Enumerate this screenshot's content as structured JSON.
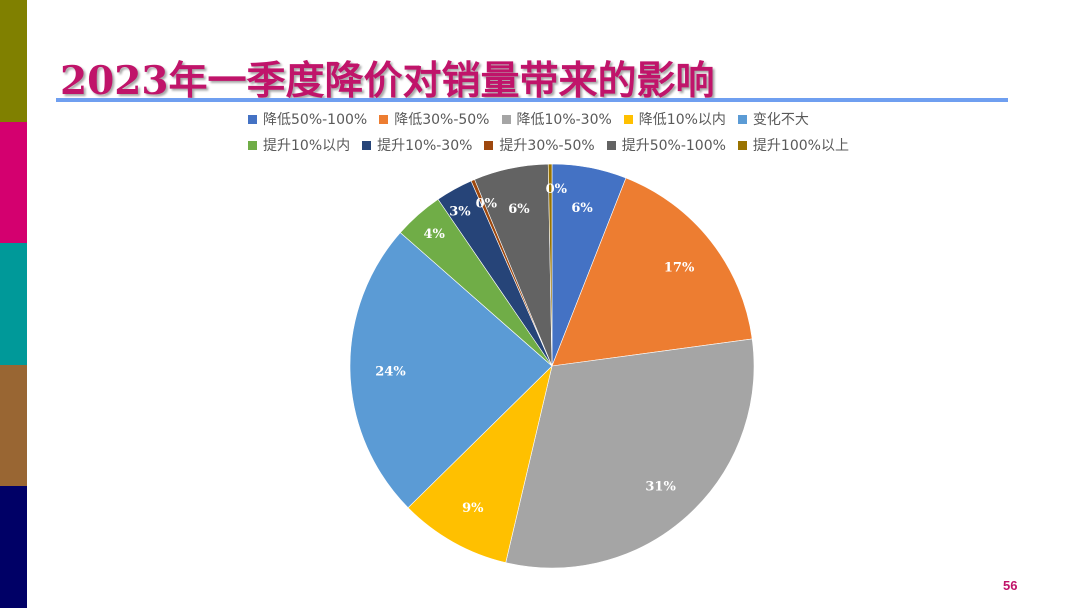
{
  "slide": {
    "title": "2023年一季度降价对销量带来的影响",
    "page_number": "56",
    "side_bar_colors": [
      "#808000",
      "#d4006f",
      "#009999",
      "#996633",
      "#000066"
    ],
    "rule_color": "#6f9ff0",
    "title_color": "#c0146a"
  },
  "chart_data": {
    "type": "pie",
    "title": "",
    "legend_position": "top",
    "start_angle_deg": 0,
    "direction": "clockwise",
    "categories": [
      "降低50%-100%",
      "降低30%-50%",
      "降低10%-30%",
      "降低10%以内",
      "变化不大",
      "提升10%以内",
      "提升10%-30%",
      "提升30%-50%",
      "提升50%-100%",
      "提升100%以上"
    ],
    "values": [
      6,
      17,
      31,
      9,
      24,
      4,
      3,
      0,
      6,
      0
    ],
    "labels": [
      "6%",
      "17%",
      "31%",
      "9%",
      "24%",
      "4%",
      "3%",
      "0%",
      "6%",
      "0%"
    ],
    "colors": [
      "#4472c4",
      "#ed7d31",
      "#a5a5a5",
      "#ffc000",
      "#5b9bd5",
      "#70ad47",
      "#264478",
      "#9e480e",
      "#636363",
      "#997300"
    ]
  }
}
